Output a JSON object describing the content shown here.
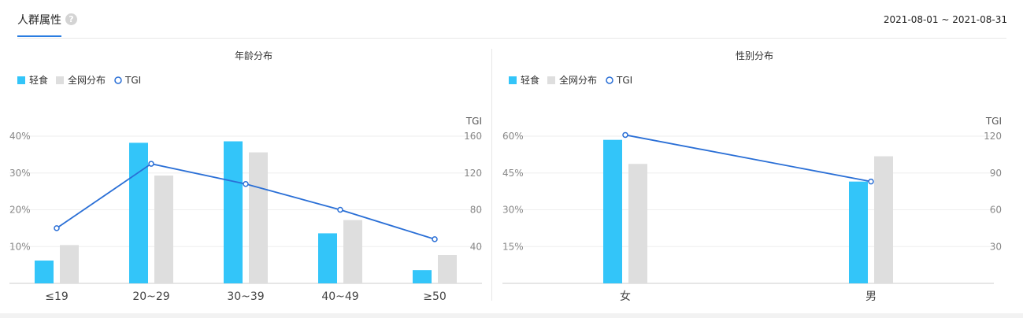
{
  "header": {
    "tab_label": "人群属性",
    "help_icon": "question-circle-icon",
    "help_glyph": "?",
    "date_range": "2021-08-01 ~ 2021-08-31"
  },
  "colors": {
    "primary": "#33c5f9",
    "secondary": "#dedede",
    "tgi": "#2a6fd6",
    "accent": "#2a7de1"
  },
  "chart_data": [
    {
      "type": "bar",
      "title": "年龄分布",
      "categories": [
        "≤19",
        "20~29",
        "30~39",
        "40~49",
        "≥50"
      ],
      "series": [
        {
          "name": "轻食",
          "type": "bar",
          "axis": "left",
          "values": [
            6.2,
            38.2,
            38.6,
            13.6,
            3.6
          ]
        },
        {
          "name": "全网分布",
          "type": "bar",
          "axis": "left",
          "values": [
            10.4,
            29.3,
            35.6,
            17.2,
            7.7
          ]
        },
        {
          "name": "TGI",
          "type": "line",
          "axis": "right",
          "values": [
            60,
            130,
            108,
            80,
            48
          ]
        }
      ],
      "y_left": {
        "ticks": [
          10,
          20,
          30,
          40
        ],
        "tick_labels": [
          "10%",
          "20%",
          "30%",
          "40%"
        ],
        "range": [
          0,
          40
        ]
      },
      "y_right": {
        "label": "TGI",
        "ticks": [
          40,
          80,
          120,
          160
        ],
        "tick_labels": [
          "40",
          "80",
          "120",
          "160"
        ],
        "range": [
          0,
          160
        ]
      },
      "legend": "top-left",
      "grid": true
    },
    {
      "type": "bar",
      "title": "性别分布",
      "categories": [
        "女",
        "男"
      ],
      "series": [
        {
          "name": "轻食",
          "type": "bar",
          "axis": "left",
          "values": [
            58.5,
            41.5
          ]
        },
        {
          "name": "全网分布",
          "type": "bar",
          "axis": "left",
          "values": [
            48.7,
            51.8
          ]
        },
        {
          "name": "TGI",
          "type": "line",
          "axis": "right",
          "values": [
            121,
            83
          ]
        }
      ],
      "y_left": {
        "ticks": [
          15,
          30,
          45,
          60
        ],
        "tick_labels": [
          "15%",
          "30%",
          "45%",
          "60%"
        ],
        "range": [
          0,
          60
        ]
      },
      "y_right": {
        "label": "TGI",
        "ticks": [
          30,
          60,
          90,
          120
        ],
        "tick_labels": [
          "30",
          "60",
          "90",
          "120"
        ],
        "range": [
          0,
          120
        ]
      },
      "legend": "top-left",
      "grid": true
    }
  ]
}
